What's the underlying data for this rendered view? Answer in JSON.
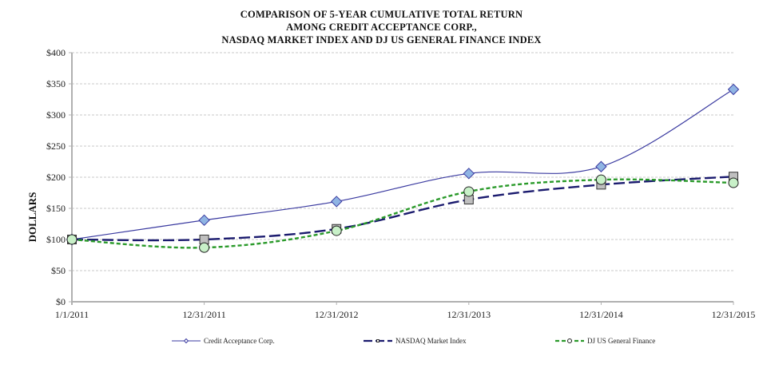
{
  "chart_data": {
    "type": "line",
    "title": [
      "COMPARISON  OF 5-YEAR  CUMULATIVE  TOTAL  RETURN",
      "AMONG  CREDIT  ACCEPTANCE  CORP.,",
      "NASDAQ  MARKET  INDEX  AND DJ US GENERAL  FINANCE  INDEX"
    ],
    "xlabel": "",
    "ylabel": "DOLLARS",
    "categories": [
      "1/1/2011",
      "12/31/2011",
      "12/31/2012",
      "12/31/2013",
      "12/31/2014",
      "12/31/2015"
    ],
    "ylim": [
      0,
      400
    ],
    "yticks": [
      0,
      50,
      100,
      150,
      200,
      250,
      300,
      350,
      400
    ],
    "ytick_labels": [
      "$0",
      "$50",
      "$100",
      "$150",
      "$200",
      "$250",
      "$300",
      "$350",
      "$400"
    ],
    "grid": true,
    "legend_position": "bottom",
    "series": [
      {
        "name": "Credit Acceptance Corp.",
        "values": [
          100,
          131,
          161,
          206,
          217,
          341
        ],
        "color": "#3a3aa0",
        "marker": "diamond",
        "marker_fill": "#8fb4e3",
        "style": "solid"
      },
      {
        "name": "NASDAQ Market Index",
        "values": [
          100,
          100,
          117,
          164,
          188,
          201
        ],
        "color": "#1a1a6e",
        "marker": "square",
        "marker_fill": "#bfbfbf",
        "style": "dashed"
      },
      {
        "name": "DJ US General Finance",
        "values": [
          100,
          87,
          114,
          177,
          196,
          191
        ],
        "color": "#2a9a2a",
        "marker": "circle",
        "marker_fill": "#c8f0c8",
        "style": "dotted"
      }
    ]
  }
}
